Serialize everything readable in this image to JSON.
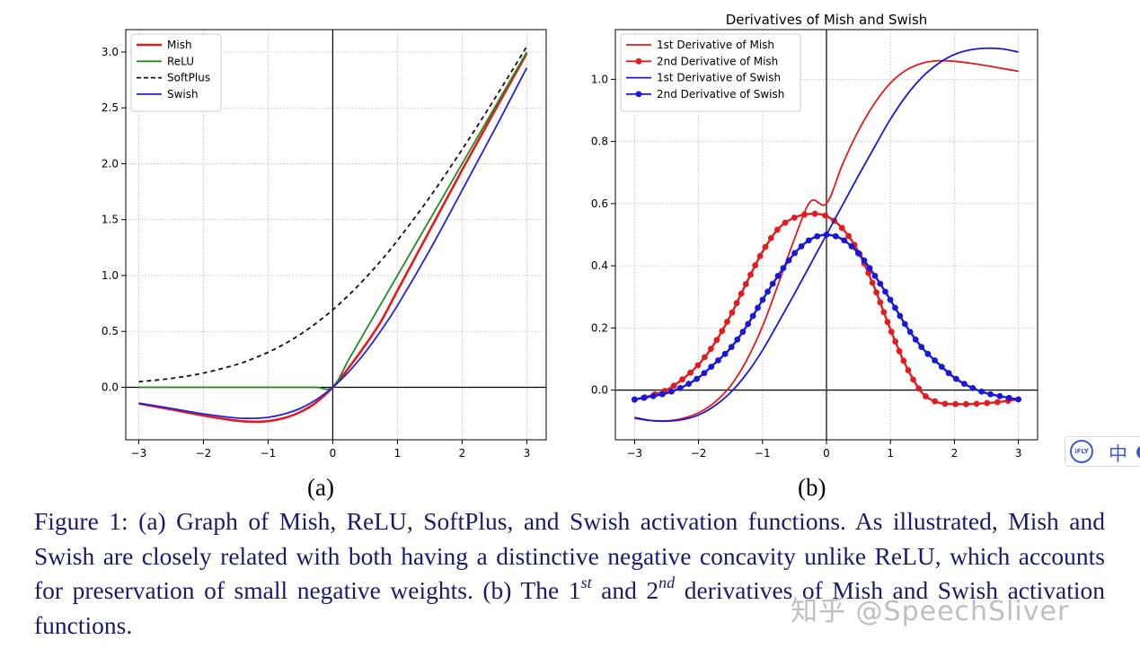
{
  "chart_data": [
    {
      "type": "line",
      "title": "",
      "xlabel": "",
      "ylabel": "",
      "xlim": [
        -3.2,
        3.3
      ],
      "ylim": [
        -0.47,
        3.2
      ],
      "xticks": [
        -3,
        -2,
        -1,
        0,
        1,
        2,
        3
      ],
      "xtick_labels": [
        "−3",
        "−2",
        "−1",
        "0",
        "1",
        "2",
        "3"
      ],
      "yticks": [
        0.0,
        0.5,
        1.0,
        1.5,
        2.0,
        2.5,
        3.0
      ],
      "ytick_labels": [
        "0.0",
        "0.5",
        "1.0",
        "1.5",
        "2.0",
        "2.5",
        "3.0"
      ],
      "grid": true,
      "legend_position": "top-left",
      "x": [
        -3,
        -2.5,
        -2,
        -1.5,
        -1.25,
        -1,
        -0.75,
        -0.5,
        -0.25,
        0,
        0.25,
        0.5,
        0.75,
        1,
        1.5,
        2,
        2.5,
        3
      ],
      "series": [
        {
          "name": "Mish",
          "color": "#e41a1c",
          "style": "solid-thick",
          "values": [
            -0.146,
            -0.198,
            -0.253,
            -0.298,
            -0.308,
            -0.303,
            -0.275,
            -0.221,
            -0.133,
            0.0,
            0.177,
            0.375,
            0.593,
            0.865,
            1.404,
            1.944,
            2.469,
            2.987
          ]
        },
        {
          "name": "ReLU",
          "color": "#228b22",
          "style": "solid",
          "values": [
            0,
            0,
            0,
            0,
            0,
            0,
            0,
            0,
            0,
            0,
            0.25,
            0.5,
            0.75,
            1,
            1.5,
            2,
            2.5,
            3
          ]
        },
        {
          "name": "SoftPlus",
          "color": "#111111",
          "style": "dashed",
          "values": [
            0.049,
            0.079,
            0.127,
            0.201,
            0.252,
            0.313,
            0.386,
            0.474,
            0.576,
            0.693,
            0.826,
            0.974,
            1.136,
            1.313,
            1.701,
            2.127,
            2.579,
            3.049
          ]
        },
        {
          "name": "Swish",
          "color": "#2222dd",
          "style": "solid",
          "values": [
            -0.142,
            -0.189,
            -0.238,
            -0.274,
            -0.278,
            -0.269,
            -0.239,
            -0.189,
            -0.11,
            0.0,
            0.14,
            0.311,
            0.511,
            0.731,
            1.227,
            1.762,
            2.303,
            2.858
          ]
        }
      ]
    },
    {
      "type": "line",
      "title": "Derivatives of Mish and Swish",
      "xlabel": "",
      "ylabel": "",
      "xlim": [
        -3.3,
        3.3
      ],
      "ylim": [
        -0.16,
        1.16
      ],
      "xticks": [
        -3,
        -2,
        -1,
        0,
        1,
        2,
        3
      ],
      "xtick_labels": [
        "−3",
        "−2",
        "−1",
        "0",
        "1",
        "2",
        "3"
      ],
      "yticks": [
        0.0,
        0.2,
        0.4,
        0.6,
        0.8,
        1.0
      ],
      "ytick_labels": [
        "0.0",
        "0.2",
        "0.4",
        "0.6",
        "0.8",
        "1.0"
      ],
      "grid": true,
      "legend_position": "top-left",
      "x": [
        -3,
        -2.75,
        -2.5,
        -2.25,
        -2,
        -1.75,
        -1.5,
        -1.25,
        -1,
        -0.75,
        -0.5,
        -0.25,
        0,
        0.25,
        0.5,
        0.75,
        1,
        1.25,
        1.5,
        1.75,
        2,
        2.25,
        2.5,
        2.75,
        3
      ],
      "series": [
        {
          "name": "1st Derivative of Mish",
          "color": "#e41a1c",
          "marker": "none",
          "values": [
            -0.091,
            -0.098,
            -0.099,
            -0.091,
            -0.073,
            -0.04,
            0.013,
            0.095,
            0.205,
            0.343,
            0.487,
            0.607,
            0.6,
            0.726,
            0.835,
            0.922,
            0.988,
            1.03,
            1.052,
            1.06,
            1.058,
            1.052,
            1.044,
            1.035,
            1.026
          ]
        },
        {
          "name": "2nd Derivative of Mish",
          "color": "#e41a1c",
          "marker": "circle",
          "values": [
            -0.031,
            -0.018,
            0.0,
            0.035,
            0.082,
            0.15,
            0.24,
            0.345,
            0.445,
            0.52,
            0.555,
            0.567,
            0.56,
            0.52,
            0.445,
            0.33,
            0.195,
            0.075,
            -0.01,
            -0.04,
            -0.045,
            -0.045,
            -0.042,
            -0.037,
            -0.03
          ]
        },
        {
          "name": "1st Derivative of Swish",
          "color": "#1818dd",
          "marker": "none",
          "values": [
            -0.088,
            -0.098,
            -0.1,
            -0.095,
            -0.08,
            -0.051,
            -0.008,
            0.052,
            0.128,
            0.218,
            0.31,
            0.405,
            0.5,
            0.595,
            0.69,
            0.782,
            0.872,
            0.948,
            1.008,
            1.051,
            1.08,
            1.095,
            1.1,
            1.098,
            1.088
          ]
        },
        {
          "name": "2nd Derivative of Swish",
          "color": "#1818dd",
          "marker": "circle",
          "values": [
            -0.03,
            -0.021,
            -0.01,
            0.01,
            0.04,
            0.085,
            0.135,
            0.205,
            0.29,
            0.37,
            0.44,
            0.485,
            0.5,
            0.485,
            0.44,
            0.37,
            0.29,
            0.205,
            0.135,
            0.085,
            0.04,
            0.01,
            -0.01,
            -0.021,
            -0.03
          ]
        }
      ]
    }
  ],
  "sublabels": {
    "a": "(a)",
    "b": "(b)"
  },
  "caption": {
    "prefix": "Figure 1: (a) Graph of Mish, ReLU, SoftPlus, and Swish activation functions. As illustrated, Mish and Swish are closely related with both having a distinctive negative concavity unlike ReLU, which accounts for preservation of small negative weights. (b) The 1",
    "sup1": "st",
    "mid": " and 2",
    "sup2": "nd",
    "suffix": " derivatives of Mish and Swish activation functions."
  },
  "watermark": "知乎 @SpeechSliver",
  "ifly_widget": {
    "icon_label": "iFLY",
    "zh": "中",
    "more": "◖"
  }
}
